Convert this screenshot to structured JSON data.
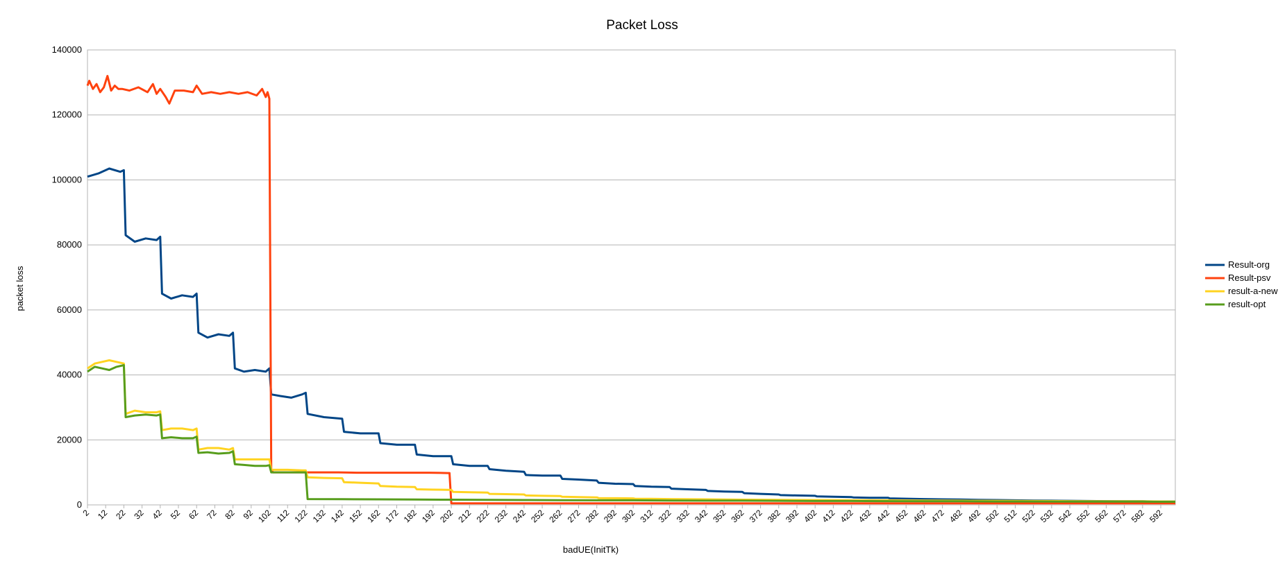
{
  "chart_data": {
    "type": "line",
    "title": "Packet Loss",
    "xlabel": "badUE(InitTk)",
    "ylabel": "packet loss",
    "ylim": [
      0,
      140000
    ],
    "yticks": [
      0,
      20000,
      40000,
      60000,
      80000,
      100000,
      120000,
      140000
    ],
    "xlim": [
      2,
      600
    ],
    "xticks": [
      2,
      12,
      22,
      32,
      42,
      52,
      62,
      72,
      82,
      92,
      102,
      112,
      122,
      132,
      142,
      152,
      162,
      172,
      182,
      192,
      202,
      212,
      222,
      232,
      242,
      252,
      262,
      272,
      282,
      292,
      302,
      312,
      322,
      332,
      342,
      352,
      362,
      372,
      382,
      392,
      402,
      412,
      422,
      432,
      442,
      452,
      462,
      472,
      482,
      492,
      502,
      512,
      522,
      532,
      542,
      552,
      562,
      572,
      582,
      592
    ],
    "grid": "horizontal",
    "legend_position": "right",
    "series": [
      {
        "name": "Result-org",
        "color": "#004586",
        "points": [
          [
            2,
            101000
          ],
          [
            8,
            102000
          ],
          [
            14,
            103500
          ],
          [
            20,
            102500
          ],
          [
            22,
            103000
          ],
          [
            23,
            83000
          ],
          [
            28,
            81000
          ],
          [
            34,
            82000
          ],
          [
            40,
            81500
          ],
          [
            42,
            82500
          ],
          [
            43,
            65000
          ],
          [
            48,
            63500
          ],
          [
            54,
            64500
          ],
          [
            60,
            64000
          ],
          [
            62,
            65000
          ],
          [
            63,
            53000
          ],
          [
            68,
            51500
          ],
          [
            74,
            52500
          ],
          [
            80,
            52000
          ],
          [
            82,
            53000
          ],
          [
            83,
            42000
          ],
          [
            88,
            41000
          ],
          [
            94,
            41500
          ],
          [
            100,
            41000
          ],
          [
            102,
            42000
          ],
          [
            103,
            34000
          ],
          [
            108,
            33500
          ],
          [
            114,
            33000
          ],
          [
            120,
            34000
          ],
          [
            122,
            34500
          ],
          [
            123,
            28000
          ],
          [
            132,
            27000
          ],
          [
            142,
            26500
          ],
          [
            143,
            22500
          ],
          [
            152,
            22000
          ],
          [
            162,
            22000
          ],
          [
            163,
            19000
          ],
          [
            172,
            18500
          ],
          [
            182,
            18500
          ],
          [
            183,
            15500
          ],
          [
            192,
            15000
          ],
          [
            202,
            15000
          ],
          [
            203,
            12500
          ],
          [
            212,
            12000
          ],
          [
            222,
            12000
          ],
          [
            223,
            11000
          ],
          [
            232,
            10500
          ],
          [
            242,
            10200
          ],
          [
            243,
            9200
          ],
          [
            252,
            9000
          ],
          [
            262,
            9000
          ],
          [
            263,
            8000
          ],
          [
            272,
            7800
          ],
          [
            282,
            7500
          ],
          [
            283,
            6800
          ],
          [
            292,
            6500
          ],
          [
            302,
            6400
          ],
          [
            303,
            5800
          ],
          [
            312,
            5600
          ],
          [
            322,
            5500
          ],
          [
            323,
            5000
          ],
          [
            332,
            4800
          ],
          [
            342,
            4600
          ],
          [
            343,
            4300
          ],
          [
            352,
            4100
          ],
          [
            362,
            4000
          ],
          [
            363,
            3600
          ],
          [
            372,
            3400
          ],
          [
            382,
            3200
          ],
          [
            383,
            3000
          ],
          [
            392,
            2900
          ],
          [
            402,
            2800
          ],
          [
            403,
            2600
          ],
          [
            412,
            2500
          ],
          [
            422,
            2400
          ],
          [
            423,
            2300
          ],
          [
            432,
            2200
          ],
          [
            442,
            2200
          ],
          [
            443,
            2000
          ],
          [
            452,
            1900
          ],
          [
            462,
            1800
          ],
          [
            472,
            1700
          ],
          [
            482,
            1650
          ],
          [
            492,
            1550
          ],
          [
            502,
            1500
          ],
          [
            512,
            1400
          ],
          [
            522,
            1350
          ],
          [
            532,
            1300
          ],
          [
            542,
            1250
          ],
          [
            552,
            1200
          ],
          [
            562,
            1150
          ],
          [
            572,
            1100
          ],
          [
            582,
            1100
          ],
          [
            592,
            1050
          ],
          [
            600,
            1050
          ]
        ]
      },
      {
        "name": "Result-psv",
        "color": "#ff420e",
        "points": [
          [
            2,
            129000
          ],
          [
            3,
            130500
          ],
          [
            5,
            128000
          ],
          [
            7,
            129500
          ],
          [
            9,
            127000
          ],
          [
            11,
            128500
          ],
          [
            13,
            132000
          ],
          [
            15,
            127500
          ],
          [
            17,
            129000
          ],
          [
            19,
            128000
          ],
          [
            21,
            128000
          ],
          [
            25,
            127500
          ],
          [
            30,
            128500
          ],
          [
            35,
            127000
          ],
          [
            38,
            129500
          ],
          [
            40,
            126500
          ],
          [
            42,
            128000
          ],
          [
            45,
            125500
          ],
          [
            47,
            123500
          ],
          [
            50,
            127500
          ],
          [
            55,
            127500
          ],
          [
            60,
            127000
          ],
          [
            62,
            129000
          ],
          [
            65,
            126500
          ],
          [
            70,
            127000
          ],
          [
            75,
            126500
          ],
          [
            80,
            127000
          ],
          [
            85,
            126500
          ],
          [
            90,
            127000
          ],
          [
            95,
            126000
          ],
          [
            98,
            128000
          ],
          [
            100,
            125500
          ],
          [
            101,
            127000
          ],
          [
            102,
            125000
          ],
          [
            103,
            11000
          ],
          [
            104,
            10000
          ],
          [
            110,
            10000
          ],
          [
            120,
            10000
          ],
          [
            130,
            10000
          ],
          [
            140,
            10000
          ],
          [
            150,
            9900
          ],
          [
            160,
            9900
          ],
          [
            170,
            9900
          ],
          [
            180,
            9900
          ],
          [
            190,
            9900
          ],
          [
            200,
            9800
          ],
          [
            201,
            9800
          ],
          [
            202,
            500
          ],
          [
            600,
            500
          ]
        ]
      },
      {
        "name": "result-a-new",
        "color": "#ffd320",
        "points": [
          [
            2,
            42000
          ],
          [
            6,
            43500
          ],
          [
            10,
            44000
          ],
          [
            14,
            44500
          ],
          [
            18,
            44000
          ],
          [
            22,
            43500
          ],
          [
            23,
            28000
          ],
          [
            28,
            29000
          ],
          [
            34,
            28500
          ],
          [
            40,
            28500
          ],
          [
            42,
            28800
          ],
          [
            43,
            23000
          ],
          [
            48,
            23500
          ],
          [
            54,
            23500
          ],
          [
            60,
            23000
          ],
          [
            62,
            23500
          ],
          [
            63,
            17000
          ],
          [
            68,
            17500
          ],
          [
            74,
            17500
          ],
          [
            80,
            17000
          ],
          [
            82,
            17500
          ],
          [
            83,
            14000
          ],
          [
            88,
            14000
          ],
          [
            94,
            14000
          ],
          [
            100,
            14000
          ],
          [
            102,
            14000
          ],
          [
            103,
            10800
          ],
          [
            112,
            10800
          ],
          [
            120,
            10600
          ],
          [
            122,
            10600
          ],
          [
            123,
            8500
          ],
          [
            132,
            8300
          ],
          [
            142,
            8200
          ],
          [
            143,
            7000
          ],
          [
            152,
            6800
          ],
          [
            162,
            6600
          ],
          [
            163,
            5800
          ],
          [
            172,
            5600
          ],
          [
            182,
            5500
          ],
          [
            183,
            4800
          ],
          [
            192,
            4700
          ],
          [
            202,
            4600
          ],
          [
            203,
            4000
          ],
          [
            212,
            3900
          ],
          [
            222,
            3800
          ],
          [
            223,
            3400
          ],
          [
            232,
            3300
          ],
          [
            242,
            3200
          ],
          [
            243,
            2900
          ],
          [
            252,
            2800
          ],
          [
            262,
            2700
          ],
          [
            263,
            2500
          ],
          [
            272,
            2400
          ],
          [
            282,
            2300
          ],
          [
            283,
            2100
          ],
          [
            292,
            2050
          ],
          [
            302,
            2000
          ],
          [
            303,
            1900
          ],
          [
            312,
            1850
          ],
          [
            322,
            1800
          ],
          [
            342,
            1700
          ],
          [
            362,
            1600
          ],
          [
            382,
            1550
          ],
          [
            402,
            1500
          ],
          [
            422,
            1450
          ],
          [
            442,
            1400
          ],
          [
            462,
            1350
          ],
          [
            482,
            1300
          ],
          [
            502,
            1250
          ],
          [
            522,
            1200
          ],
          [
            542,
            1150
          ],
          [
            562,
            1100
          ],
          [
            582,
            1100
          ],
          [
            600,
            1050
          ]
        ]
      },
      {
        "name": "result-opt",
        "color": "#579d1c",
        "points": [
          [
            2,
            41000
          ],
          [
            6,
            42500
          ],
          [
            10,
            42000
          ],
          [
            14,
            41500
          ],
          [
            18,
            42500
          ],
          [
            22,
            43000
          ],
          [
            23,
            27000
          ],
          [
            28,
            27500
          ],
          [
            34,
            27800
          ],
          [
            40,
            27500
          ],
          [
            42,
            27800
          ],
          [
            43,
            20500
          ],
          [
            48,
            20800
          ],
          [
            54,
            20500
          ],
          [
            60,
            20500
          ],
          [
            62,
            21000
          ],
          [
            63,
            16000
          ],
          [
            68,
            16200
          ],
          [
            74,
            15800
          ],
          [
            80,
            16000
          ],
          [
            82,
            16500
          ],
          [
            83,
            12500
          ],
          [
            88,
            12300
          ],
          [
            94,
            12000
          ],
          [
            100,
            12000
          ],
          [
            102,
            12200
          ],
          [
            103,
            10000
          ],
          [
            112,
            10000
          ],
          [
            120,
            10000
          ],
          [
            122,
            10000
          ],
          [
            123,
            1800
          ],
          [
            142,
            1750
          ],
          [
            162,
            1700
          ],
          [
            182,
            1650
          ],
          [
            202,
            1600
          ],
          [
            222,
            1550
          ],
          [
            242,
            1500
          ],
          [
            262,
            1450
          ],
          [
            282,
            1400
          ],
          [
            302,
            1400
          ],
          [
            322,
            1350
          ],
          [
            342,
            1300
          ],
          [
            362,
            1300
          ],
          [
            382,
            1250
          ],
          [
            402,
            1200
          ],
          [
            422,
            1200
          ],
          [
            442,
            1150
          ],
          [
            462,
            1100
          ],
          [
            482,
            1100
          ],
          [
            502,
            1050
          ],
          [
            522,
            1050
          ],
          [
            542,
            1000
          ],
          [
            562,
            1000
          ],
          [
            582,
            1000
          ],
          [
            600,
            950
          ]
        ]
      }
    ]
  }
}
